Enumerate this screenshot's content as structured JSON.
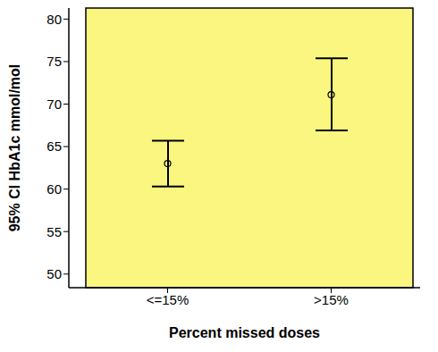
{
  "chart_data": {
    "type": "errorbar",
    "x_label": "Percent missed doses",
    "y_label": "95% CI HbA1c mmol/mol",
    "categories": [
      "<=15%",
      ">15%"
    ],
    "values": [
      63,
      71.1
    ],
    "ci_lower": [
      60.3,
      66.9
    ],
    "ci_upper": [
      65.7,
      75.4
    ],
    "color": "#000000",
    "marker": "circle",
    "ylim": [
      48.4,
      81.3
    ],
    "yticks": [
      50,
      55,
      60,
      65,
      70,
      75,
      80
    ],
    "grid": false
  }
}
